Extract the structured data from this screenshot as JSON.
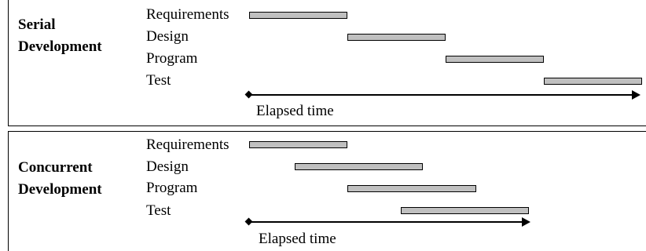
{
  "serial": {
    "title_line1": "Serial",
    "title_line2": "Development",
    "tasks": [
      {
        "name": "Requirements",
        "start": 0.0,
        "end": 1.0
      },
      {
        "name": "Design",
        "start": 1.0,
        "end": 2.0
      },
      {
        "name": "Program",
        "start": 2.0,
        "end": 3.0
      },
      {
        "name": "Test",
        "start": 3.0,
        "end": 4.0
      }
    ],
    "axis_label": "Elapsed time"
  },
  "concurrent": {
    "title_line1": "Concurrent",
    "title_line2": "Development",
    "tasks": [
      {
        "name": "Requirements",
        "start": 0.0,
        "end": 1.0
      },
      {
        "name": "Design",
        "start": 0.46,
        "end": 1.77
      },
      {
        "name": "Program",
        "start": 1.0,
        "end": 2.31
      },
      {
        "name": "Test",
        "start": 1.54,
        "end": 2.85
      }
    ],
    "axis_label": "Elapsed time"
  }
}
